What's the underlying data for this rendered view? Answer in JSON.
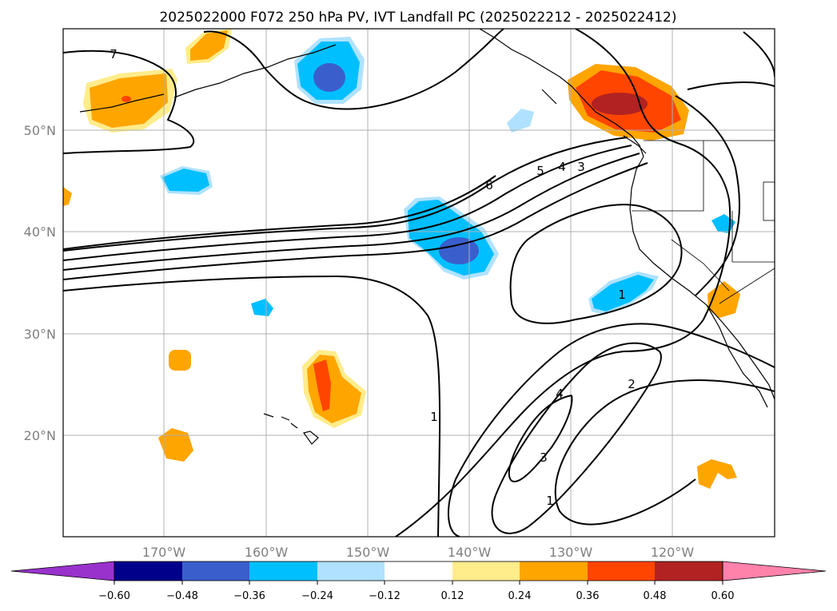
{
  "title": "2025022000 F072 250 hPa PV, IVT Landfall PC (2025022212 - 2025022412)",
  "map": {
    "lat_labels": [
      "50°N",
      "40°N",
      "30°N",
      "20°N"
    ],
    "lon_labels": [
      "170°W",
      "160°W",
      "150°W",
      "140°W",
      "130°W",
      "120°W"
    ],
    "contour_labels": [
      "7",
      "6",
      "5",
      "4",
      "3",
      "1",
      "4",
      "3",
      "2",
      "1",
      "1"
    ],
    "grid": true
  },
  "colorbar": {
    "ticks": [
      "−0.60",
      "−0.48",
      "−0.36",
      "−0.24",
      "−0.12",
      "0.12",
      "0.24",
      "0.36",
      "0.48",
      "0.60"
    ],
    "colors": [
      "#9932cc",
      "#00008b",
      "#3a5fcd",
      "#00bfff",
      "#b0e2ff",
      "#ffffff",
      "#ffec8b",
      "#ffa500",
      "#ff4500",
      "#b22222",
      "#ff82ab"
    ]
  }
}
